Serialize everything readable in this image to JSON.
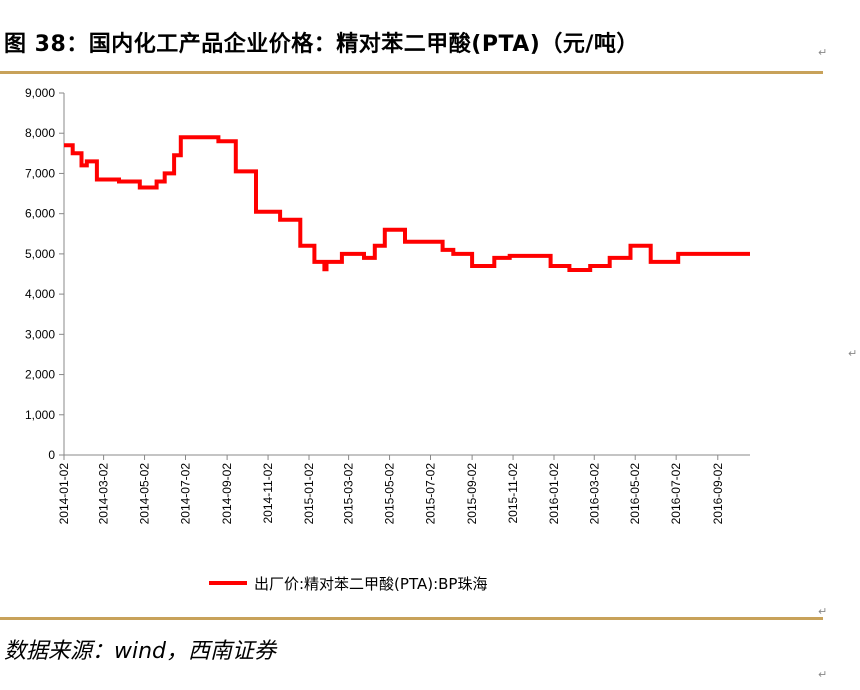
{
  "figure_title": "图 38：国内化工产品企业价格：精对苯二甲酸(PTA)（元/吨）",
  "source_note": "数据来源：wind，西南证券",
  "paragraph_mark": "↵",
  "colors": {
    "series": "#ff0000",
    "rule": "#c8a25a",
    "axis": "#888888"
  },
  "chart_data": {
    "type": "line",
    "title": "",
    "xlabel": "",
    "ylabel": "",
    "ylim": [
      0,
      9000
    ],
    "yticks": [
      "0",
      "1,000",
      "2,000",
      "3,000",
      "4,000",
      "5,000",
      "6,000",
      "7,000",
      "8,000",
      "9,000"
    ],
    "xticks": [
      "2014-01-02",
      "2014-03-02",
      "2014-05-02",
      "2014-07-02",
      "2014-09-02",
      "2014-11-02",
      "2015-01-02",
      "2015-03-02",
      "2015-05-02",
      "2015-07-02",
      "2015-09-02",
      "2015-11-02",
      "2016-01-02",
      "2016-03-02",
      "2016-05-02",
      "2016-07-02",
      "2016-09-02"
    ],
    "x_start": "2014-01-02",
    "x_end": "2016-10-20",
    "legend": {
      "position": "bottom"
    },
    "series": [
      {
        "name": "出厂价:精对苯二甲酸(PTA):BP珠海",
        "color": "#ff0000",
        "points": [
          [
            "2014-01-02",
            7700
          ],
          [
            "2014-01-15",
            7500
          ],
          [
            "2014-01-28",
            7200
          ],
          [
            "2014-02-05",
            7300
          ],
          [
            "2014-02-20",
            6850
          ],
          [
            "2014-03-25",
            6800
          ],
          [
            "2014-04-25",
            6650
          ],
          [
            "2014-05-20",
            6800
          ],
          [
            "2014-06-01",
            7000
          ],
          [
            "2014-06-15",
            7450
          ],
          [
            "2014-06-25",
            7900
          ],
          [
            "2014-08-20",
            7800
          ],
          [
            "2014-09-15",
            7050
          ],
          [
            "2014-10-15",
            6050
          ],
          [
            "2014-11-20",
            5850
          ],
          [
            "2014-12-20",
            5200
          ],
          [
            "2015-01-10",
            4800
          ],
          [
            "2015-01-25",
            4620
          ],
          [
            "2015-01-28",
            4800
          ],
          [
            "2015-02-20",
            5000
          ],
          [
            "2015-03-25",
            4900
          ],
          [
            "2015-04-10",
            5200
          ],
          [
            "2015-04-25",
            5600
          ],
          [
            "2015-05-25",
            5300
          ],
          [
            "2015-07-20",
            5100
          ],
          [
            "2015-08-05",
            5000
          ],
          [
            "2015-09-02",
            4700
          ],
          [
            "2015-10-05",
            4900
          ],
          [
            "2015-10-28",
            4950
          ],
          [
            "2015-12-28",
            4700
          ],
          [
            "2016-01-25",
            4600
          ],
          [
            "2016-02-25",
            4700
          ],
          [
            "2016-03-25",
            4900
          ],
          [
            "2016-04-25",
            5200
          ],
          [
            "2016-05-25",
            4800
          ],
          [
            "2016-07-05",
            5000
          ],
          [
            "2016-10-20",
            5000
          ]
        ]
      }
    ]
  }
}
